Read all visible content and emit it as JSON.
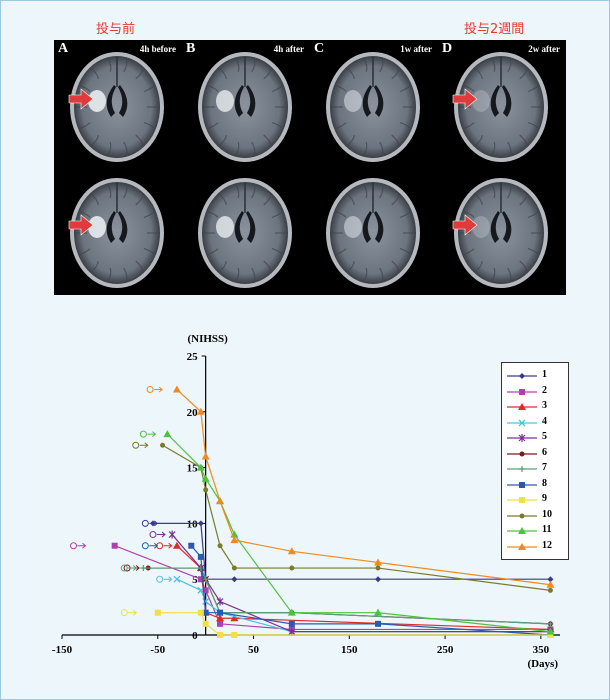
{
  "header": {
    "pre": "投与前",
    "post": "投与2週間"
  },
  "mri": {
    "panels": [
      {
        "label": "A",
        "time": "4h before",
        "colors": {
          "arrow": "#e03a3a"
        }
      },
      {
        "label": "B",
        "time": "4h after"
      },
      {
        "label": "C",
        "time": "1w after"
      },
      {
        "label": "D",
        "time": "2w after"
      }
    ]
  },
  "chart_data": {
    "type": "line",
    "ylabel": "(NIHSS)",
    "xlabel": "(Days)",
    "xlim": [
      -150,
      370
    ],
    "ylim": [
      0,
      25
    ],
    "xticks": [
      -150,
      -50,
      50,
      150,
      250,
      350
    ],
    "yticks": [
      0,
      5,
      10,
      15,
      20,
      25
    ],
    "series": [
      {
        "name": "1",
        "color": "#3a3a8a",
        "marker": "diamond",
        "x": [
          -55,
          -5,
          0,
          30,
          180,
          360
        ],
        "y": [
          10,
          10,
          5,
          5,
          5,
          5
        ],
        "open_x": -63
      },
      {
        "name": "2",
        "color": "#b040b0",
        "marker": "square",
        "x": [
          -95,
          -5,
          0,
          15,
          90,
          360
        ],
        "y": [
          8,
          5,
          4,
          1,
          0.5,
          0.5
        ],
        "open_x": -138
      },
      {
        "name": "3",
        "color": "#e02a2a",
        "marker": "triangle",
        "x": [
          -30,
          -5,
          0,
          15,
          30,
          360
        ],
        "y": [
          8,
          6,
          2,
          1.5,
          1.5,
          0.5
        ],
        "open_x": -48
      },
      {
        "name": "4",
        "color": "#50c0e0",
        "marker": "x",
        "x": [
          -30,
          -5,
          0,
          15,
          90,
          360
        ],
        "y": [
          5,
          4,
          3,
          2,
          0.3,
          0.3
        ],
        "open_x": -48
      },
      {
        "name": "5",
        "color": "#7a3090",
        "marker": "star",
        "x": [
          -35,
          -5,
          0,
          15,
          90,
          360
        ],
        "y": [
          9,
          6,
          5,
          3,
          0.3,
          0.3
        ],
        "open_x": -55
      },
      {
        "name": "6",
        "color": "#7a1a1a",
        "marker": "circle",
        "x": [
          -60,
          -5,
          0,
          15,
          90,
          360
        ],
        "y": [
          6,
          6,
          5,
          2,
          2,
          1
        ],
        "open_x": -82
      },
      {
        "name": "7",
        "color": "#5aa07a",
        "marker": "plus",
        "x": [
          -65,
          -5,
          0,
          15,
          90,
          360
        ],
        "y": [
          6,
          6,
          5,
          2,
          2,
          1
        ],
        "open_x": -85
      },
      {
        "name": "8",
        "color": "#2a5ab0",
        "marker": "square",
        "x": [
          -15,
          -5,
          0,
          15,
          90,
          180,
          360
        ],
        "y": [
          8,
          7,
          2,
          2,
          1,
          1,
          0
        ],
        "open_x": -63
      },
      {
        "name": "9",
        "color": "#f0e040",
        "marker": "square",
        "x": [
          -50,
          -5,
          0,
          15,
          30,
          360
        ],
        "y": [
          2,
          2,
          1,
          0,
          0,
          0
        ],
        "open_x": -85
      },
      {
        "name": "10",
        "color": "#7a7a2a",
        "marker": "circle",
        "x": [
          -45,
          -5,
          0,
          15,
          30,
          90,
          180,
          360
        ],
        "y": [
          17,
          15,
          13,
          8,
          6,
          6,
          6,
          4
        ],
        "open_x": -73
      },
      {
        "name": "11",
        "color": "#50c040",
        "marker": "triangle",
        "x": [
          -40,
          -5,
          0,
          15,
          30,
          90,
          180,
          360
        ],
        "y": [
          18,
          15,
          14,
          12,
          9,
          2,
          2,
          0.3
        ],
        "open_x": -65
      },
      {
        "name": "12",
        "color": "#f08a20",
        "marker": "triangle",
        "x": [
          -30,
          -5,
          0,
          15,
          30,
          90,
          180,
          360
        ],
        "y": [
          22,
          20,
          16,
          12,
          8.5,
          7.5,
          6.5,
          4.5
        ],
        "open_x": -58
      }
    ]
  }
}
